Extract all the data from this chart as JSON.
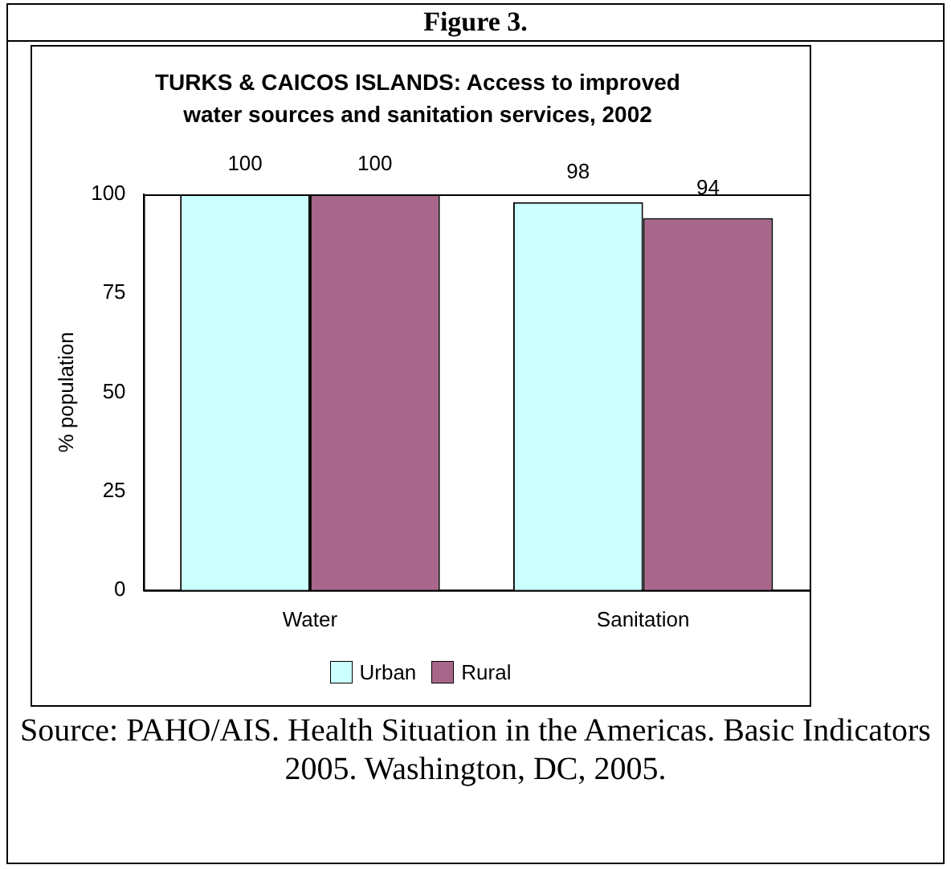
{
  "chart_data": {
    "type": "bar",
    "title": "TURKS & CAICOS ISLANDS: Access to improved water sources and sanitation services, 2002",
    "ylabel": "% population",
    "categories": [
      "Water",
      "Sanitation"
    ],
    "series": [
      {
        "name": "Urban",
        "color": "#ccffff",
        "values": [
          100,
          98
        ]
      },
      {
        "name": "Rural",
        "color": "#a8678a",
        "values": [
          100,
          94
        ]
      }
    ],
    "ylim": [
      0,
      100
    ],
    "yticks": [
      0,
      25,
      50,
      75,
      100
    ],
    "grid": false,
    "legend": "bottom",
    "data_labels": true,
    "annotations": [
      "Figure 3.",
      "Source: PAHO/AIS. Health Situation in the Americas. Basic Indicators 2005. Washington, DC, 2005."
    ]
  }
}
